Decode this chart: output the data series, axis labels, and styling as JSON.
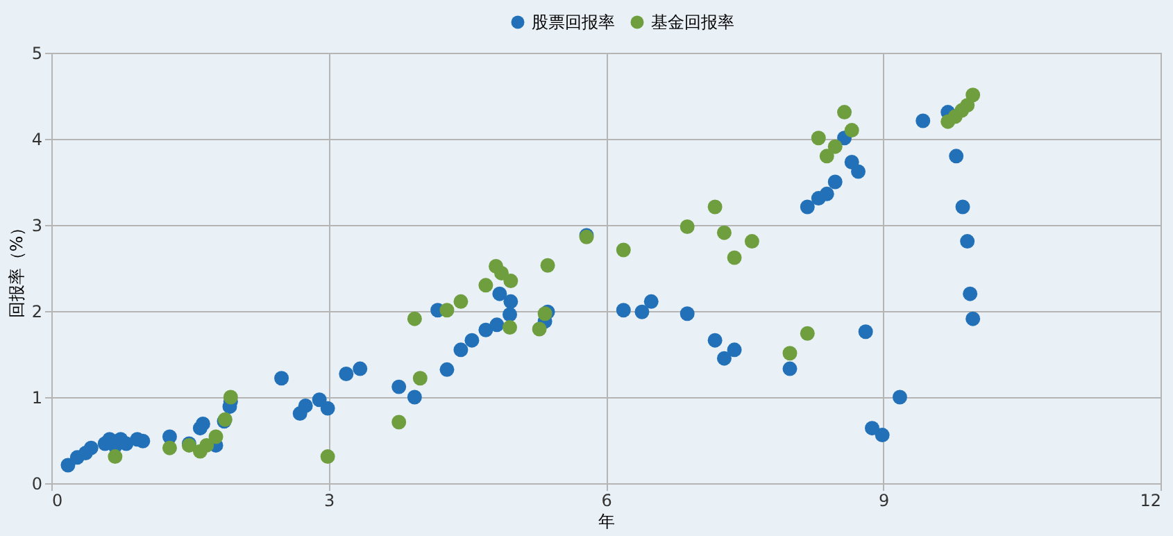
{
  "chart_data": {
    "type": "scatter",
    "xlabel": "年",
    "ylabel": "回报率（%）",
    "xlim": [
      0,
      12
    ],
    "xticks": [
      0,
      3,
      6,
      9,
      12
    ],
    "ylim": [
      0,
      5
    ],
    "yticks": [
      0,
      1,
      2,
      3,
      4,
      5
    ],
    "grid": true,
    "legend": "top",
    "marker": "circle",
    "series": [
      {
        "name": "股票回报率",
        "color": "#2271b8",
        "x": [
          0.18,
          0.28,
          0.37,
          0.43,
          0.58,
          0.63,
          0.69,
          0.75,
          0.81,
          0.93,
          0.99,
          1.28,
          1.49,
          1.61,
          1.64,
          1.78,
          1.87,
          1.93,
          1.94,
          2.49,
          2.69,
          2.75,
          2.9,
          2.99,
          3.19,
          3.34,
          3.76,
          3.93,
          4.18,
          4.28,
          4.43,
          4.55,
          4.7,
          4.82,
          4.85,
          4.97,
          4.96,
          5.34,
          5.37,
          5.79,
          6.19,
          6.39,
          6.49,
          6.88,
          7.18,
          7.28,
          7.39,
          7.99,
          8.18,
          8.3,
          8.39,
          8.48,
          8.58,
          8.66,
          8.73,
          8.81,
          8.88,
          8.99,
          9.18,
          9.43,
          9.7,
          9.79,
          9.86,
          9.91,
          9.94,
          9.97
        ],
        "values": [
          0.21,
          0.3,
          0.35,
          0.41,
          0.46,
          0.51,
          0.43,
          0.51,
          0.46,
          0.51,
          0.49,
          0.54,
          0.46,
          0.64,
          0.69,
          0.44,
          0.72,
          0.89,
          0.95,
          1.22,
          0.81,
          0.9,
          0.97,
          0.87,
          1.27,
          1.33,
          1.12,
          1.0,
          2.01,
          1.32,
          1.55,
          1.66,
          1.78,
          1.84,
          2.2,
          2.11,
          1.96,
          1.88,
          1.99,
          2.88,
          2.01,
          1.99,
          2.11,
          1.97,
          1.66,
          1.45,
          1.55,
          1.33,
          3.21,
          3.31,
          3.36,
          3.5,
          4.01,
          3.73,
          3.62,
          1.76,
          0.64,
          0.56,
          1.0,
          4.21,
          4.31,
          3.8,
          3.21,
          2.81,
          2.2,
          1.91
        ]
      },
      {
        "name": "基金回报率",
        "color": "#6f9e3f",
        "x": [
          0.69,
          1.28,
          1.49,
          1.61,
          1.68,
          1.78,
          1.88,
          1.94,
          2.99,
          3.76,
          3.99,
          3.93,
          4.28,
          4.43,
          4.7,
          4.81,
          4.87,
          4.97,
          4.96,
          5.28,
          5.34,
          5.37,
          5.79,
          6.19,
          6.88,
          7.18,
          7.28,
          7.39,
          7.58,
          7.99,
          8.18,
          8.3,
          8.39,
          8.48,
          8.58,
          8.66,
          9.7,
          9.78,
          9.85,
          9.91,
          9.97
        ],
        "values": [
          0.31,
          0.41,
          0.44,
          0.37,
          0.44,
          0.54,
          0.74,
          1.0,
          0.31,
          0.71,
          1.22,
          1.91,
          2.01,
          2.11,
          2.3,
          2.52,
          2.44,
          2.35,
          1.81,
          1.79,
          1.97,
          2.53,
          2.86,
          2.71,
          2.98,
          3.21,
          2.91,
          2.62,
          2.81,
          1.51,
          1.74,
          4.01,
          3.8,
          3.91,
          4.31,
          4.1,
          4.2,
          4.26,
          4.33,
          4.39,
          4.51
        ]
      }
    ]
  }
}
